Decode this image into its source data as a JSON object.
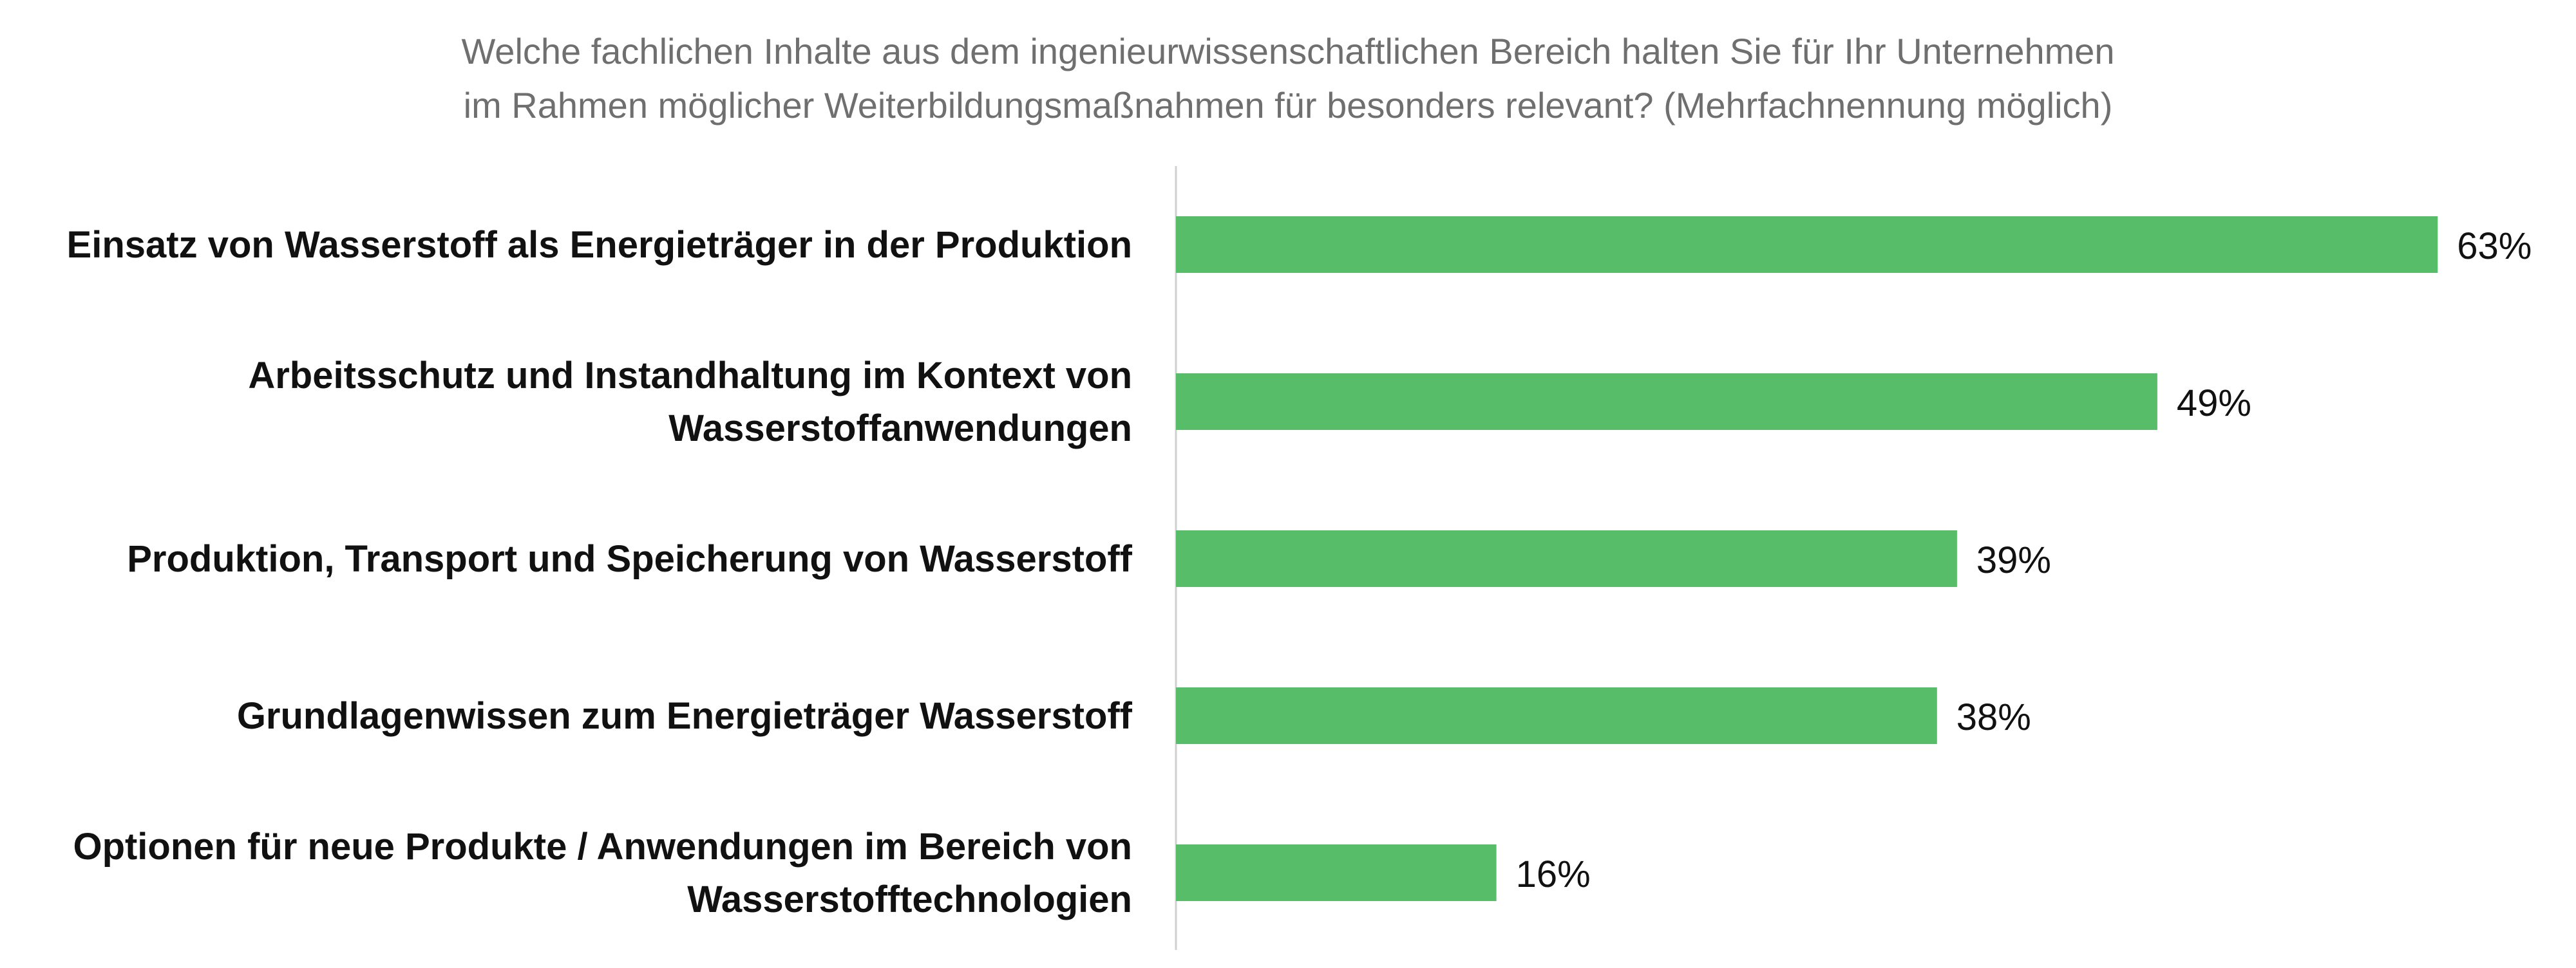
{
  "chart_data": {
    "type": "bar",
    "orientation": "horizontal",
    "title": [
      "Welche fachlichen Inhalte aus dem ingenieurwissenschaftlichen Bereich halten Sie für Ihr Unternehmen",
      "im Rahmen möglicher Weiterbildungsmaßnahmen für besonders relevant? (Mehrfachnennung möglich)"
    ],
    "categories": [
      [
        "Einsatz von Wasserstoff als Energieträger in der Produktion"
      ],
      [
        "Arbeitsschutz und Instandhaltung im Kontext von",
        "Wasserstoffanwendungen"
      ],
      [
        "Produktion, Transport und Speicherung von Wasserstoff"
      ],
      [
        "Grundlagenwissen zum Energieträger Wasserstoff"
      ],
      [
        "Optionen für neue Produkte / Anwendungen im Bereich von",
        "Wasserstofftechnologien"
      ]
    ],
    "values": [
      63,
      49,
      39,
      38,
      16
    ],
    "value_labels": [
      "63%",
      "49%",
      "39%",
      "38%",
      "16%"
    ],
    "unit": "%",
    "xlim": [
      0,
      63
    ],
    "grid": false,
    "legend": "none",
    "colors": {
      "bar": "#57bd68",
      "axis": "#d0d0d0",
      "label": "#111111",
      "title": "#6f6f6f"
    }
  }
}
